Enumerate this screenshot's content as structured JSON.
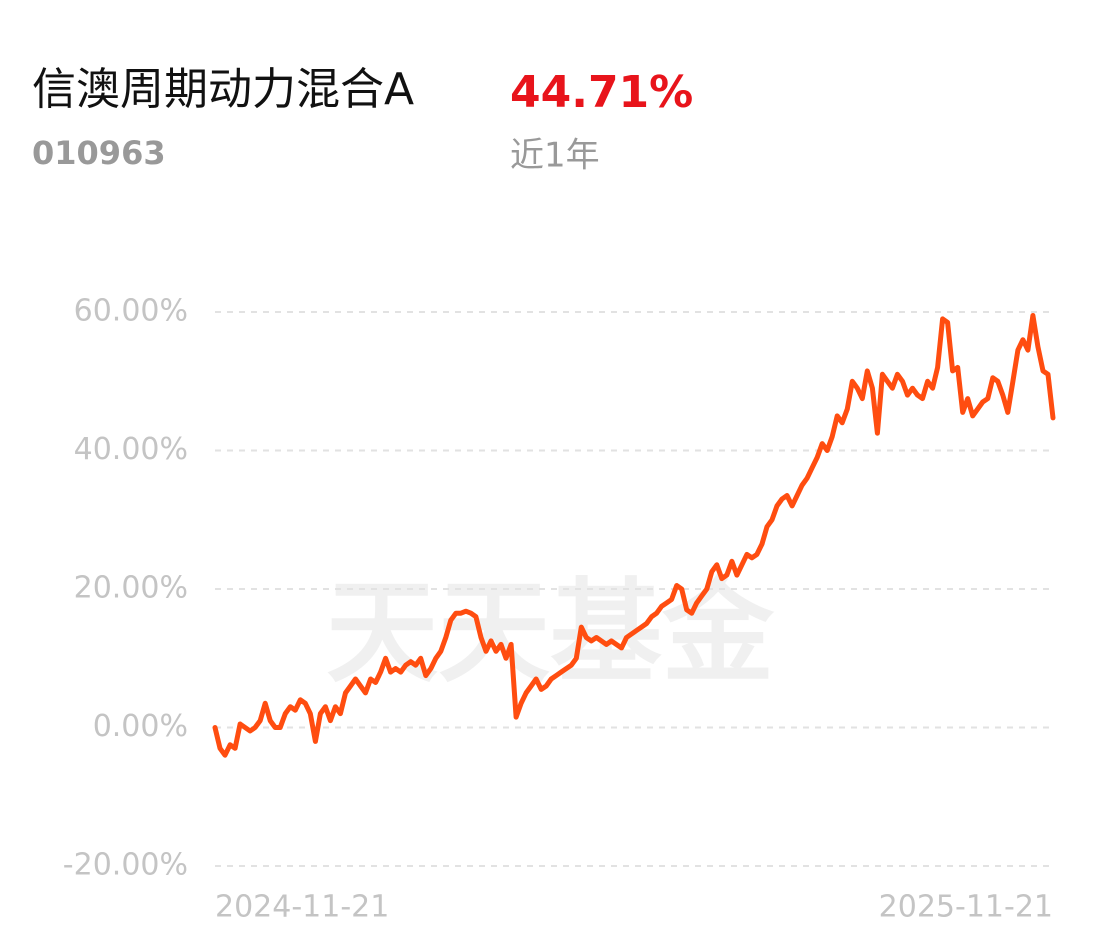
{
  "chart_data": {
    "type": "line",
    "title": "信澳周期动力混合A",
    "code": "010963",
    "return_label": "44.71%",
    "period": "近1年",
    "watermark": "天天基金",
    "color": "#ff4d10",
    "grid": true,
    "ylim": [
      -20,
      60
    ],
    "yticks": [
      {
        "value": -20,
        "label": "-20.00%"
      },
      {
        "value": 0,
        "label": "0.00%"
      },
      {
        "value": 20,
        "label": "20.00%"
      },
      {
        "value": 40,
        "label": "40.00%"
      },
      {
        "value": 60,
        "label": "60.00%"
      }
    ],
    "categories": [
      "2024-11-21",
      null,
      null,
      null,
      null,
      null,
      null,
      null,
      null,
      null,
      null,
      null,
      null,
      null,
      null,
      null,
      null,
      null,
      null,
      null,
      null,
      null,
      null,
      null,
      null,
      null,
      null,
      null,
      null,
      null,
      null,
      null,
      null,
      null,
      null,
      null,
      null,
      null,
      null,
      null,
      null,
      null,
      null,
      null,
      null,
      null,
      null,
      null,
      null,
      null,
      null,
      null,
      null,
      null,
      null,
      null,
      null,
      null,
      null,
      null,
      null,
      null,
      null,
      null,
      null,
      null,
      null,
      null,
      null,
      null,
      null,
      null,
      null,
      null,
      null,
      null,
      null,
      null,
      null,
      null,
      null,
      null,
      null,
      null,
      null,
      null,
      null,
      null,
      null,
      null,
      null,
      null,
      null,
      null,
      null,
      null,
      null,
      null,
      null,
      null,
      null,
      null,
      null,
      null,
      null,
      null,
      null,
      null,
      null,
      null,
      null,
      null,
      null,
      null,
      null,
      null,
      null,
      null,
      null,
      null,
      null,
      null,
      null,
      null,
      null,
      null,
      null,
      null,
      null,
      null,
      null,
      null,
      null,
      null,
      null,
      null,
      null,
      null,
      null,
      null,
      null,
      null,
      null,
      null,
      null,
      null,
      null,
      null,
      null,
      null,
      null,
      null,
      null,
      null,
      null,
      null,
      null,
      null,
      null,
      null,
      null,
      null,
      null,
      null,
      null,
      null,
      null,
      "2025-11-21"
    ],
    "values": [
      0,
      -3,
      -4,
      -2.5,
      -3,
      0.5,
      0,
      -0.5,
      0,
      1,
      3.5,
      1,
      0,
      0,
      2,
      3,
      2.5,
      4,
      3.5,
      2,
      -2,
      2,
      3,
      1,
      3,
      2,
      5,
      6,
      7,
      6,
      5,
      7,
      6.5,
      8,
      10,
      8,
      8.5,
      8,
      9,
      9.5,
      9,
      10,
      7.5,
      8.5,
      10,
      11,
      13,
      15.5,
      16.5,
      16.5,
      16.8,
      16.5,
      16,
      13,
      11,
      12.5,
      11,
      12,
      10,
      12,
      1.5,
      3.5,
      5,
      6,
      7,
      5.5,
      6,
      7,
      7.5,
      8,
      8.5,
      9,
      10,
      14.5,
      13,
      12.5,
      13,
      12.5,
      12,
      12.5,
      12,
      11.5,
      13,
      13.5,
      14,
      14.5,
      15,
      16,
      16.5,
      17.5,
      18,
      18.5,
      20.5,
      20,
      17,
      16.5,
      18,
      19,
      20,
      22.5,
      23.5,
      21.5,
      22,
      24,
      22,
      23.5,
      25,
      24.5,
      25,
      26.5,
      29,
      30,
      32,
      33,
      33.5,
      32,
      33.5,
      35,
      36,
      37.5,
      39,
      41,
      40,
      42,
      45,
      44,
      46,
      50,
      49,
      47.5,
      51.5,
      49,
      42.5,
      51,
      50,
      49,
      51,
      50,
      48,
      49,
      48,
      47.5,
      50,
      49,
      52,
      59,
      58.5,
      51.5,
      52,
      45.5,
      47.5,
      45,
      46,
      47,
      47.5,
      50.5,
      50,
      48,
      45.5,
      50,
      54.5,
      56,
      54.5,
      59.5,
      55,
      51.5,
      51,
      44.71
    ]
  }
}
